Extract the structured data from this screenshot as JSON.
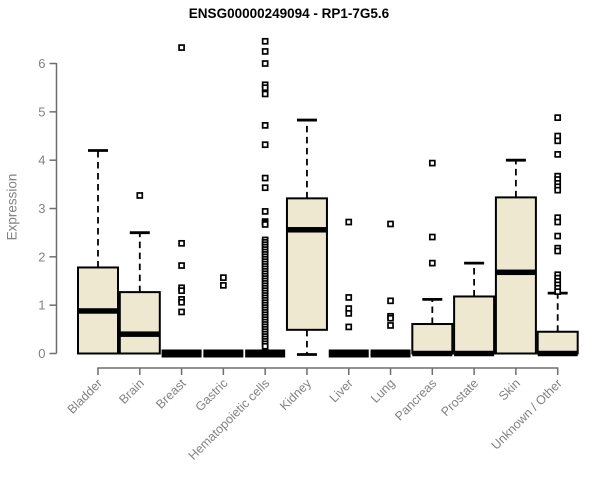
{
  "chart_data": {
    "type": "boxplot",
    "title": "ENSG00000249094 - RP1-7G5.6",
    "ylabel": "Expression",
    "xlabel": "",
    "ylim": [
      0,
      6.5
    ],
    "yticks": [
      0,
      1,
      2,
      3,
      4,
      5,
      6
    ],
    "grid": false,
    "legend": false,
    "colors": {
      "box_fill": "#ede8cf",
      "box_stroke": "#000000",
      "median": "#000000",
      "whisker": "#000000",
      "outlier_fill": "#ffffff",
      "outlier_stroke": "#000000",
      "axis_line": "#6e6e6e",
      "tick_text": "#828282",
      "title_text": "#000000"
    },
    "categories": [
      "Bladder",
      "Brain",
      "Breast",
      "Gastric",
      "Hematopoietic cells",
      "Kidney",
      "Liver",
      "Lung",
      "Pancreas",
      "Prostate",
      "Skin",
      "Unknown / Other"
    ],
    "boxes": [
      {
        "category": "Bladder",
        "q1": 0,
        "median": 0.88,
        "q3": 1.78,
        "whisker_low": 0,
        "whisker_high": 4.2,
        "outliers": []
      },
      {
        "category": "Brain",
        "q1": 0,
        "median": 0.4,
        "q3": 1.27,
        "whisker_low": 0,
        "whisker_high": 2.5,
        "outliers": [
          3.27
        ]
      },
      {
        "category": "Breast",
        "q1": 0,
        "median": 0,
        "q3": 0,
        "whisker_low": 0,
        "whisker_high": 0,
        "outliers": [
          6.33,
          2.28,
          1.82,
          1.36,
          1.3,
          1.12,
          1.06,
          0.86
        ]
      },
      {
        "category": "Gastric",
        "q1": 0,
        "median": 0,
        "q3": 0,
        "whisker_low": 0,
        "whisker_high": 0,
        "outliers": [
          1.57,
          1.41
        ]
      },
      {
        "category": "Hematopoietic cells",
        "q1": 0,
        "median": 0,
        "q3": 0,
        "whisker_low": 0,
        "whisker_high": 0,
        "outliers": [
          6.46,
          6.25,
          6.0,
          5.56,
          5.5,
          5.37,
          4.72,
          4.32,
          3.63,
          3.43,
          2.94,
          2.73,
          2.7,
          2.67,
          2.35,
          2.3,
          2.25,
          2.2,
          2.15,
          2.1,
          2.05,
          2.0,
          1.95,
          1.9,
          1.85,
          1.8,
          1.75,
          1.7,
          1.65,
          1.6,
          1.55,
          1.5,
          1.45,
          1.4,
          1.35,
          1.3,
          1.25,
          1.2,
          1.15,
          1.1,
          1.05,
          1.0,
          0.95,
          0.9,
          0.85,
          0.8,
          0.75,
          0.7,
          0.65,
          0.6,
          0.55,
          0.5,
          0.45,
          0.4,
          0.35,
          0.3,
          0.25,
          0.2,
          0.15
        ]
      },
      {
        "category": "Kidney",
        "q1": 0.49,
        "median": 2.56,
        "q3": 3.21,
        "whisker_low": 0,
        "whisker_high": 4.83,
        "outliers": []
      },
      {
        "category": "Liver",
        "q1": 0,
        "median": 0,
        "q3": 0,
        "whisker_low": 0,
        "whisker_high": 0,
        "outliers": [
          2.72,
          1.16,
          0.93,
          0.83,
          0.55
        ]
      },
      {
        "category": "Lung",
        "q1": 0,
        "median": 0,
        "q3": 0,
        "whisker_low": 0,
        "whisker_high": 0,
        "outliers": [
          2.68,
          1.09,
          0.77,
          0.73,
          0.58
        ]
      },
      {
        "category": "Pancreas",
        "q1": 0,
        "median": 0,
        "q3": 0.61,
        "whisker_low": 0,
        "whisker_high": 1.12,
        "outliers": [
          3.94,
          2.41,
          1.87
        ]
      },
      {
        "category": "Prostate",
        "q1": 0,
        "median": 0,
        "q3": 1.18,
        "whisker_low": 0,
        "whisker_high": 1.87,
        "outliers": []
      },
      {
        "category": "Skin",
        "q1": 0,
        "median": 1.68,
        "q3": 3.23,
        "whisker_low": 0,
        "whisker_high": 4.0,
        "outliers": []
      },
      {
        "category": "Unknown / Other",
        "q1": 0,
        "median": 0,
        "q3": 0.45,
        "whisker_low": 0,
        "whisker_high": 1.25,
        "outliers": [
          4.88,
          4.5,
          4.4,
          4.12,
          3.67,
          3.6,
          3.52,
          3.45,
          3.38,
          2.81,
          2.72,
          2.43,
          2.18,
          2.12,
          1.63,
          1.56,
          1.49,
          1.42,
          1.35,
          1.28
        ]
      }
    ]
  }
}
